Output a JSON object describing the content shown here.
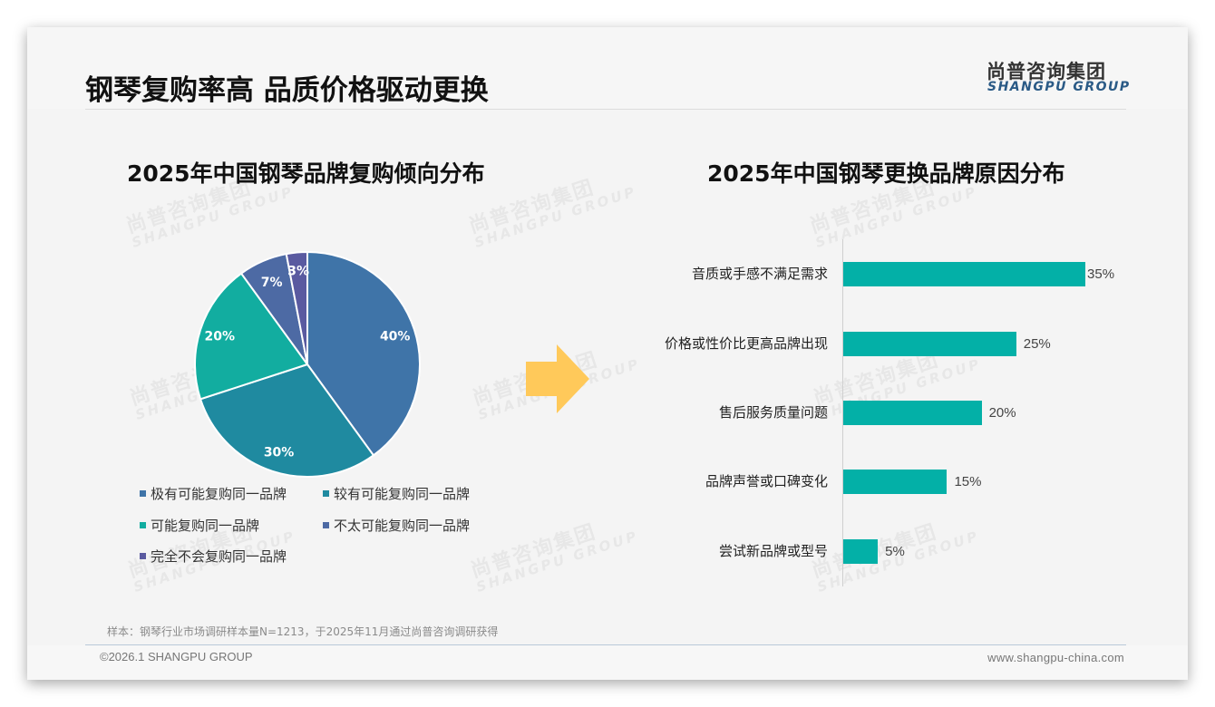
{
  "header": {
    "title": "钢琴复购率高 品质价格驱动更换",
    "logo_cn": "尚普咨询集团",
    "logo_en": "SHANGPU GROUP"
  },
  "watermark": {
    "cn": "尚普咨询集团",
    "en": "SHANGPU GROUP"
  },
  "left_chart": {
    "title": "2025年中国钢琴品牌复购倾向分布"
  },
  "right_chart": {
    "title": "2025年中国钢琴更换品牌原因分布"
  },
  "colors": {
    "slice_1": "#3f74a8",
    "slice_2": "#1f8aa0",
    "slice_3": "#12ada0",
    "slice_4": "#4d6aa4",
    "slice_5": "#5a5aa0",
    "bar": "#03b0a7",
    "arrow": "#ffc95a",
    "logo_en": "#2a5a86"
  },
  "chart_data": [
    {
      "type": "pie",
      "title": "2025年中国钢琴品牌复购倾向分布",
      "categories": [
        "极有可能复购同一品牌",
        "较有可能复购同一品牌",
        "可能复购同一品牌",
        "不太可能复购同一品牌",
        "完全不会复购同一品牌"
      ],
      "values": [
        40,
        30,
        20,
        7,
        3
      ],
      "labels": [
        "40%",
        "30%",
        "20%",
        "7%",
        "3%"
      ],
      "unit": "%",
      "legend_position": "bottom",
      "start_angle": "12 o'clock, clockwise"
    },
    {
      "type": "bar",
      "orientation": "horizontal",
      "title": "2025年中国钢琴更换品牌原因分布",
      "categories": [
        "音质或手感不满足需求",
        "价格或性价比更高品牌出现",
        "售后服务质量问题",
        "品牌声誉或口碑变化",
        "尝试新品牌或型号"
      ],
      "values": [
        35,
        25,
        20,
        15,
        5
      ],
      "labels": [
        "35%",
        "25%",
        "20%",
        "15%",
        "5%"
      ],
      "unit": "%",
      "xlabel": "",
      "ylabel": "",
      "grid": false
    }
  ],
  "footer": {
    "sample_note": "样本：钢琴行业市场调研样本量N=1213，于2025年11月通过尚普咨询调研获得",
    "copyright": "©2026.1 SHANGPU GROUP",
    "website": "www.shangpu-china.com"
  }
}
